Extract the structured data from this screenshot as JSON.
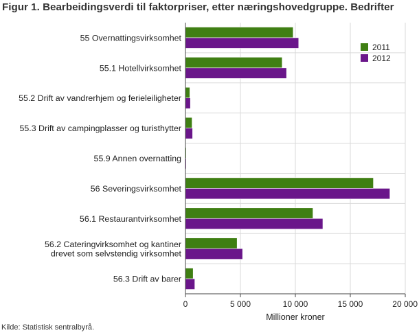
{
  "title": "Figur 1. Bearbeidingsverdi til faktorpriser, etter næringshovedgruppe. Bedrifter",
  "source": "Kilde: Statistisk sentralbyrå.",
  "colors": {
    "2011": "#3f7f13",
    "2012": "#6a168a",
    "grid": "#d9d9d9",
    "axis": "#444444"
  },
  "chart_data": {
    "type": "bar",
    "orientation": "horizontal",
    "title": "Figur 1. Bearbeidingsverdi til faktorpriser, etter næringshovedgruppe. Bedrifter",
    "xlabel": "Millioner kroner",
    "ylabel": "",
    "xlim": [
      0,
      20000
    ],
    "xticks": [
      0,
      5000,
      10000,
      15000,
      20000
    ],
    "xtick_labels": [
      "0",
      "5 000",
      "10 000",
      "15 000",
      "20 000"
    ],
    "grid": true,
    "legend_position": "top-right",
    "categories": [
      [
        "55 Overnattingsvirksomhet"
      ],
      [
        "55.1 Hotellvirksomhet"
      ],
      [
        "55.2 Drift av vandrerhjem og ferieleiligheter"
      ],
      [
        "55.3 Drift av campingplasser og turisthytter"
      ],
      [
        "55.9 Annen overnatting"
      ],
      [
        "56 Severingsvirksomhet"
      ],
      [
        "56.1 Restaurantvirksomhet"
      ],
      [
        "56.2 Cateringvirksomhet og kantiner",
        "drevet som selvstendig virksomhet"
      ],
      [
        "56.3 Drift av barer"
      ]
    ],
    "series": [
      {
        "name": "2011",
        "values": [
          9800,
          8800,
          400,
          600,
          50,
          17100,
          11600,
          4700,
          700
        ]
      },
      {
        "name": "2012",
        "values": [
          10300,
          9200,
          450,
          650,
          50,
          18600,
          12500,
          5200,
          850
        ]
      }
    ]
  }
}
